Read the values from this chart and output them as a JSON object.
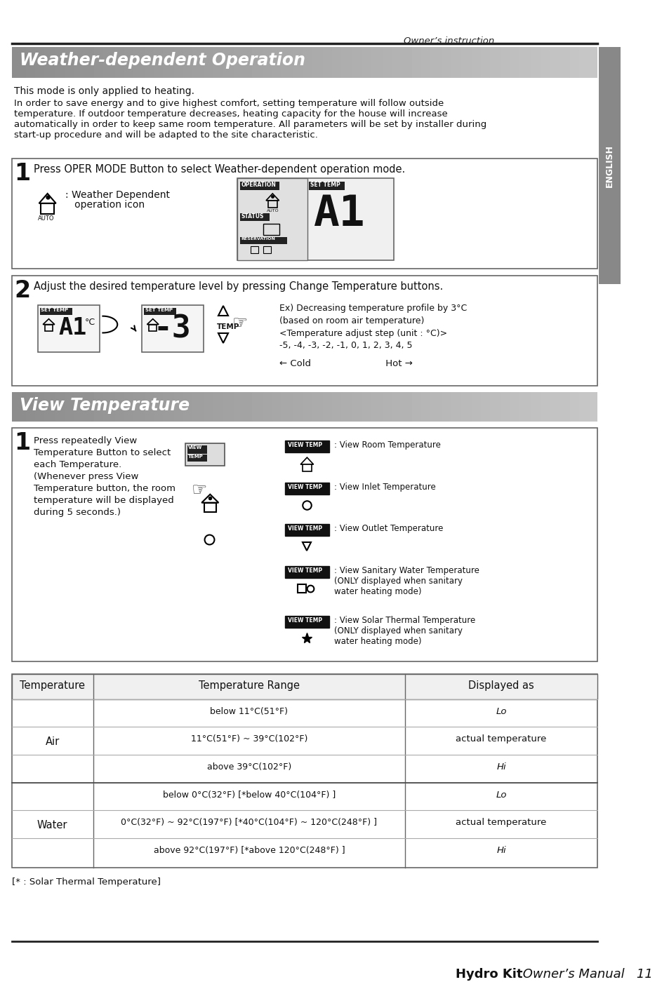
{
  "page_title": "Owner’s instruction",
  "section1_title": "Weather-dependent Operation",
  "section1_intro1": "This mode is only applied to heating.",
  "section1_intro2": "In order to save energy and to give highest comfort, setting temperature will follow outside\ntemperature. If outdoor temperature decreases, heating capacity for the house will increase\nautomatically in order to keep same room temperature. All parameters will be set by installer during\nstart-up procedure and will be adapted to the site characteristic.",
  "step1_text": "Press OPER MODE Button to select Weather-dependent operation mode.",
  "step1_icon_text_line1": ": Weather Dependent",
  "step1_icon_text_line2": "   operation icon",
  "step2_text": "Adjust the desired temperature level by pressing Change Temperature buttons.",
  "step2_ex_line1": "Ex) Decreasing temperature profile by 3°C",
  "step2_ex_line2": "(based on room air temperature)",
  "step2_ex_line3": "<Temperature adjust step (unit : °C)>",
  "step2_ex_line4": "-5, -4, -3, -2, -1, 0, 1, 2, 3, 4, 5",
  "step2_cold_hot": "← Cold                         Hot →",
  "section2_title": "View Temperature",
  "view_step1_lines": [
    "Press repeatedly View",
    "Temperature Button to select",
    "each Temperature.",
    "(Whenever press View",
    "Temperature button, the room",
    "temperature will be displayed",
    "during 5 seconds.)"
  ],
  "view_items": [
    ": View Room Temperature",
    ": View Inlet Temperature",
    ": View Outlet Temperature",
    ": View Sanitary Water Temperature\n(ONLY displayed when sanitary\nwater heating mode)",
    ": View Solar Thermal Temperature\n(ONLY displayed when sanitary\nwater heating mode)"
  ],
  "table_headers": [
    "Temperature",
    "Temperature Range",
    "Displayed as"
  ],
  "table_rows": [
    [
      "",
      "below 11°C(51°F)",
      "Lo"
    ],
    [
      "Air",
      "11°C(51°F) ~ 39°C(102°F)",
      "actual temperature"
    ],
    [
      "",
      "above 39°C(102°F)",
      "Hi"
    ],
    [
      "",
      "below 0°C(32°F) [*below 40°C(104°F) ]",
      "Lo"
    ],
    [
      "Water",
      "0°C(32°F) ~ 92°C(197°F) [*40°C(104°F) ~ 120°C(248°F) ]",
      "actual temperature"
    ],
    [
      "",
      "above 92°C(197°F) [*above 120°C(248°F) ]",
      "Hi"
    ]
  ],
  "table_footnote": "[* : Solar Thermal Temperature]",
  "english_sidebar": "ENGLISH",
  "bg_color": "#ffffff",
  "text_color": "#111111"
}
